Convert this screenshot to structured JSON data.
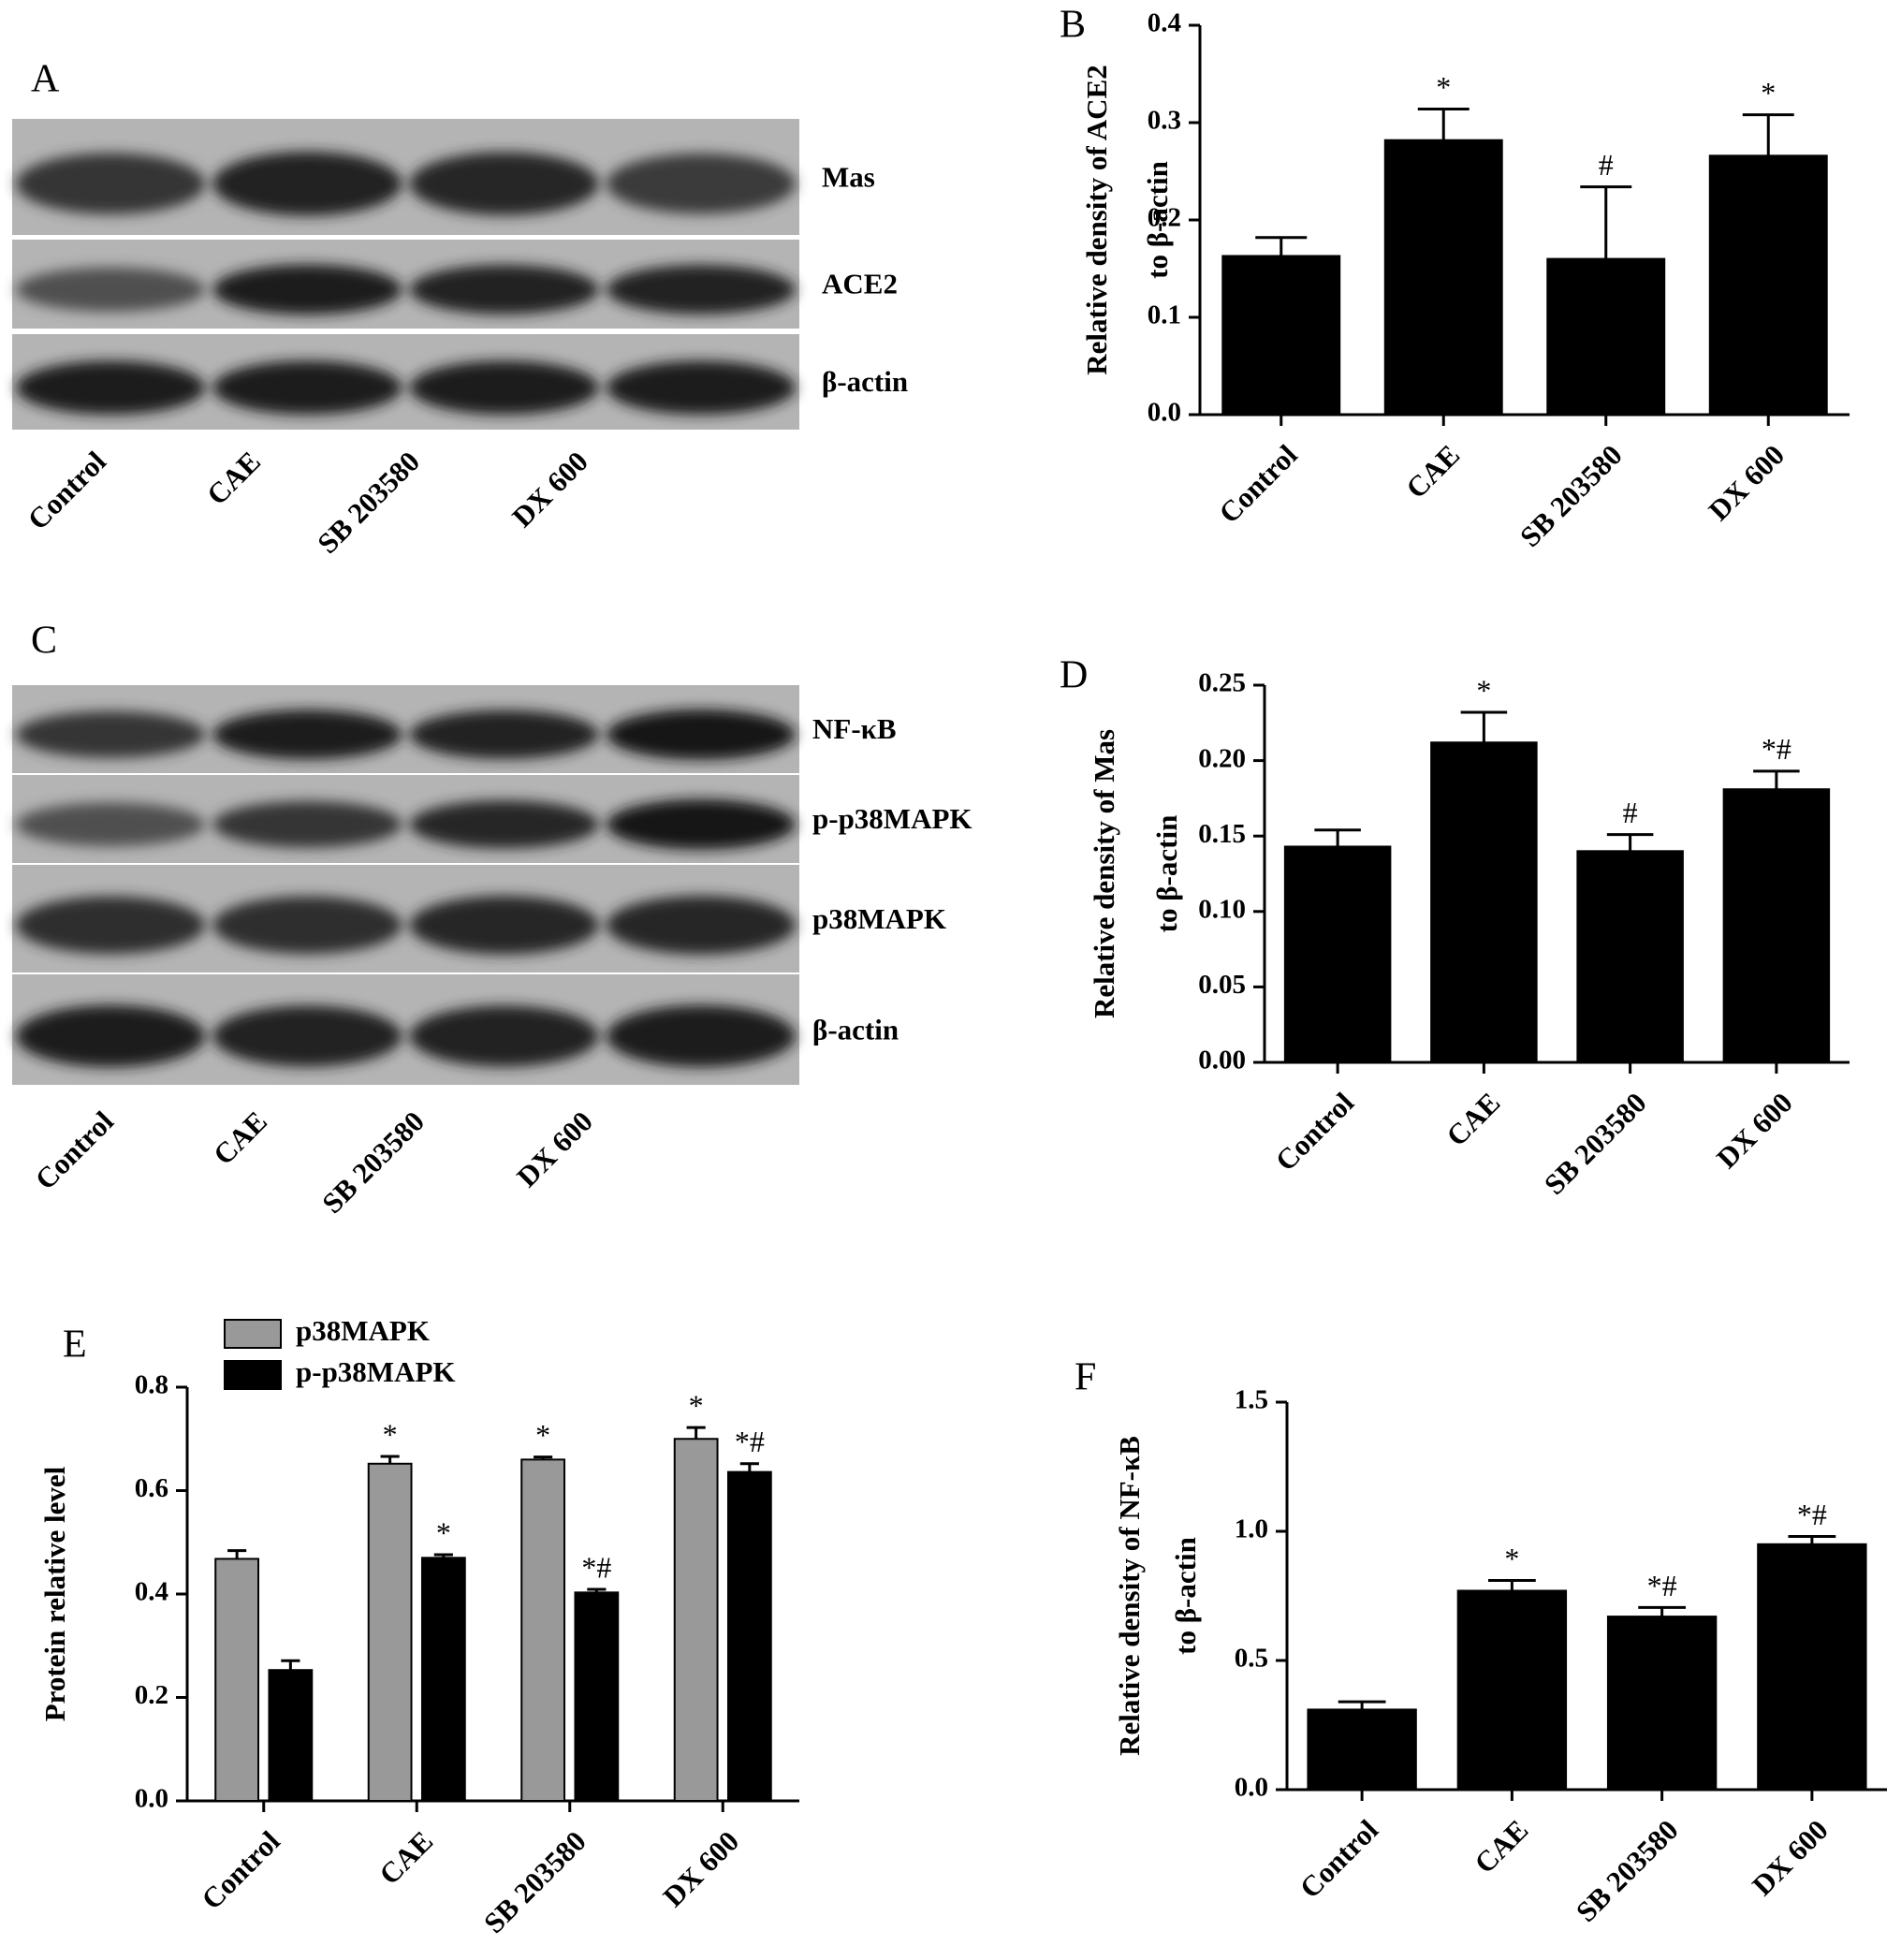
{
  "blots": [
    {
      "panel": "A",
      "bands": [
        "Mas",
        "ACE2",
        "β-actin"
      ],
      "lanes": [
        "Control",
        "CAE",
        "SB 203580",
        "DX 600"
      ]
    },
    {
      "panel": "C",
      "bands": [
        "NF-κB",
        "p-p38MAPK",
        "p38MAPK",
        "β-actin"
      ],
      "lanes": [
        "Control",
        "CAE",
        "SB 203580",
        "DX 600"
      ]
    }
  ],
  "chart_data": [
    {
      "type": "bar",
      "panel": "B",
      "ylabel": [
        "Relative density of ACE2",
        "to β-actin"
      ],
      "categories": [
        "Control",
        "CAE",
        "SB 203580",
        "DX 600"
      ],
      "values": [
        0.163,
        0.282,
        0.16,
        0.266
      ],
      "errors": [
        0.019,
        0.032,
        0.074,
        0.042
      ],
      "annotations": [
        null,
        "*",
        "#",
        "*"
      ],
      "color": "#000000",
      "ylim": [
        0,
        0.4
      ],
      "yticks": [
        {
          "value": 0,
          "label": "0.0"
        },
        0.1,
        0.2,
        0.3,
        0.4
      ]
    },
    {
      "type": "bar",
      "panel": "D",
      "ylabel": [
        "Relative density of Mas",
        "to β-actin"
      ],
      "categories": [
        "Control",
        "CAE",
        "SB 203580",
        "DX 600"
      ],
      "values": [
        0.143,
        0.212,
        0.14,
        0.181
      ],
      "errors": [
        0.011,
        0.02,
        0.011,
        0.012
      ],
      "annotations": [
        null,
        "*",
        "#",
        "*#"
      ],
      "color": "#000000",
      "ylim": [
        0,
        0.25
      ],
      "yticks": [
        {
          "value": 0,
          "label": "0.00"
        },
        0.05,
        {
          "value": 0.1,
          "label": "0.10"
        },
        0.15,
        {
          "value": 0.2,
          "label": "0.20"
        },
        0.25
      ]
    },
    {
      "type": "grouped_bar",
      "panel": "E",
      "ylabel": [
        "Protein relative level"
      ],
      "categories": [
        "Control",
        "CAE",
        "SB 203580",
        "DX 600"
      ],
      "series": [
        {
          "name": "p38MAPK",
          "color": "#999999",
          "values": [
            0.468,
            0.652,
            0.66,
            0.7
          ],
          "errors": [
            0.016,
            0.014,
            0.005,
            0.022
          ],
          "annotations": [
            null,
            "*",
            "*",
            "*"
          ]
        },
        {
          "name": "p-p38MAPK",
          "color": "#000000",
          "values": [
            0.253,
            0.47,
            0.403,
            0.636
          ],
          "errors": [
            0.018,
            0.006,
            0.006,
            0.016
          ],
          "annotations": [
            null,
            "*",
            "*#",
            "*#"
          ]
        }
      ],
      "legend": "top-left",
      "ylim": [
        0,
        0.8
      ],
      "yticks": [
        {
          "value": 0,
          "label": "0.0"
        },
        0.2,
        0.4,
        0.6,
        0.8
      ]
    },
    {
      "type": "bar",
      "panel": "F",
      "ylabel": [
        "Relative density of NF-κB",
        "to β-actin"
      ],
      "categories": [
        "Control",
        "CAE",
        "SB 203580",
        "DX 600"
      ],
      "values": [
        0.31,
        0.77,
        0.67,
        0.95
      ],
      "errors": [
        0.03,
        0.04,
        0.035,
        0.03
      ],
      "annotations": [
        null,
        "*",
        "*#",
        "*#"
      ],
      "color": "#000000",
      "ylim": [
        0,
        1.5
      ],
      "yticks": [
        {
          "value": 0,
          "label": "0.0"
        },
        0.5,
        {
          "value": 1,
          "label": "1.0"
        },
        1.5
      ]
    }
  ]
}
